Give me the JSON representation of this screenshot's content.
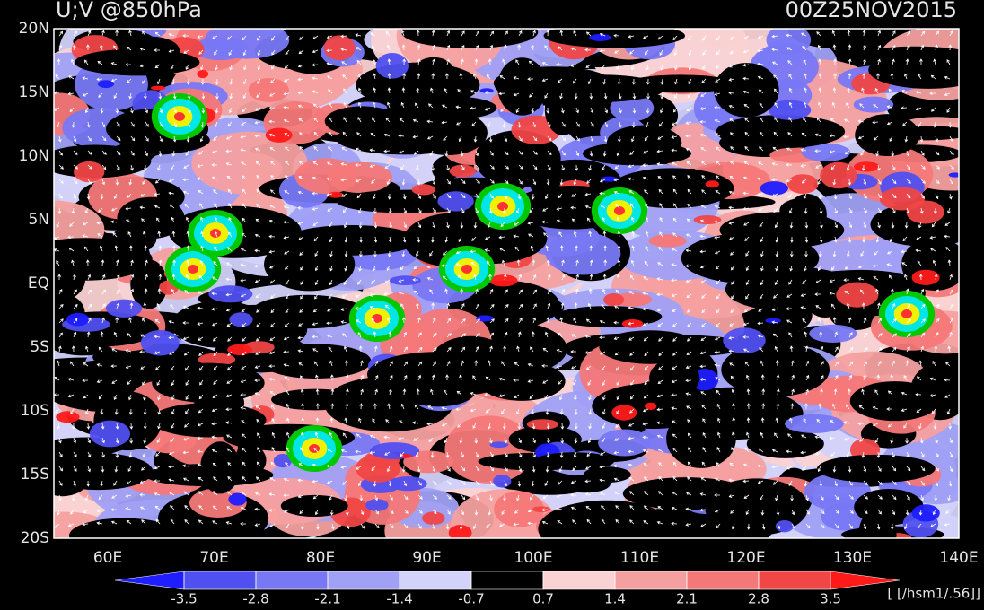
{
  "map": {
    "title": "U;V @850hPa",
    "time": "00Z25NOV2015",
    "lat_labels": [
      "20N",
      "15N",
      "10N",
      "5N",
      "EQ",
      "5S",
      "10S",
      "15S",
      "20S"
    ],
    "lon_labels": [
      "60E",
      "70E",
      "80E",
      "90E",
      "100E",
      "110E",
      "120E",
      "130E",
      "140E"
    ],
    "colorbar": {
      "levels": [
        -3.5,
        -2.8,
        -2.1,
        -1.4,
        -0.7,
        0.7,
        1.4,
        2.1,
        2.8,
        3.5
      ],
      "colors": [
        "#1e1eff",
        "#5050f0",
        "#7878f5",
        "#a0a0f5",
        "#d2d2fa",
        "#000000",
        "#fad2d2",
        "#f5a0a0",
        "#f57878",
        "#f04646",
        "#ff1a1a"
      ],
      "units": "[ [/hsm1/.56]]"
    }
  }
}
